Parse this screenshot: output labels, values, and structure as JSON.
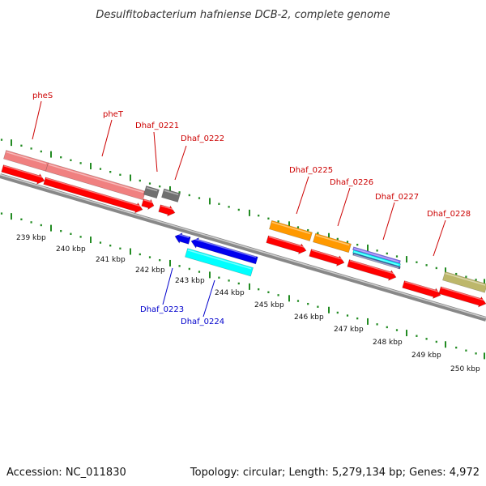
{
  "title": "Desulfitobacterium hafniense DCB-2, complete genome",
  "footer": {
    "accession": "Accession: NC_011830",
    "summary": "Topology: circular; Length: 5,279,134 bp; Genes: 4,972"
  },
  "colors": {
    "backbone": "#808080",
    "tick": "#228B22",
    "label_forward": "#cc0000",
    "label_reverse": "#0000cc",
    "cds": "#ff0000",
    "gene_pink": "#f08080",
    "gene_gray": "#707070",
    "gene_orange": "#ff9900",
    "gene_olive": "#bdb76b",
    "gene_blue": "#0000ee",
    "gene_cyan": "#00ffff",
    "gene_purple": "#7b68ee"
  },
  "scale": {
    "unit": "kbp",
    "tick_labels": [
      "239 kbp",
      "240 kbp",
      "241 kbp",
      "242 kbp",
      "243 kbp",
      "244 kbp",
      "245 kbp",
      "246 kbp",
      "247 kbp",
      "248 kbp",
      "249 kbp",
      "250 kbp"
    ]
  },
  "genes": {
    "forward": [
      {
        "label": "pheS",
        "color": "gene_pink"
      },
      {
        "label": "pheT",
        "color": "gene_pink"
      },
      {
        "label": "Dhaf_0221",
        "color": "gene_gray"
      },
      {
        "label": "Dhaf_0222",
        "color": "gene_gray"
      },
      {
        "label": "Dhaf_0225",
        "color": "gene_orange"
      },
      {
        "label": "Dhaf_0226",
        "color": "gene_orange"
      },
      {
        "label": "Dhaf_0227",
        "color": "gene_purple"
      },
      {
        "label": "Dhaf_0228",
        "color": "gene_olive"
      }
    ],
    "reverse": [
      {
        "label": "Dhaf_0223",
        "color": "gene_blue"
      },
      {
        "label": "Dhaf_0224",
        "color": "gene_cyan"
      }
    ]
  }
}
